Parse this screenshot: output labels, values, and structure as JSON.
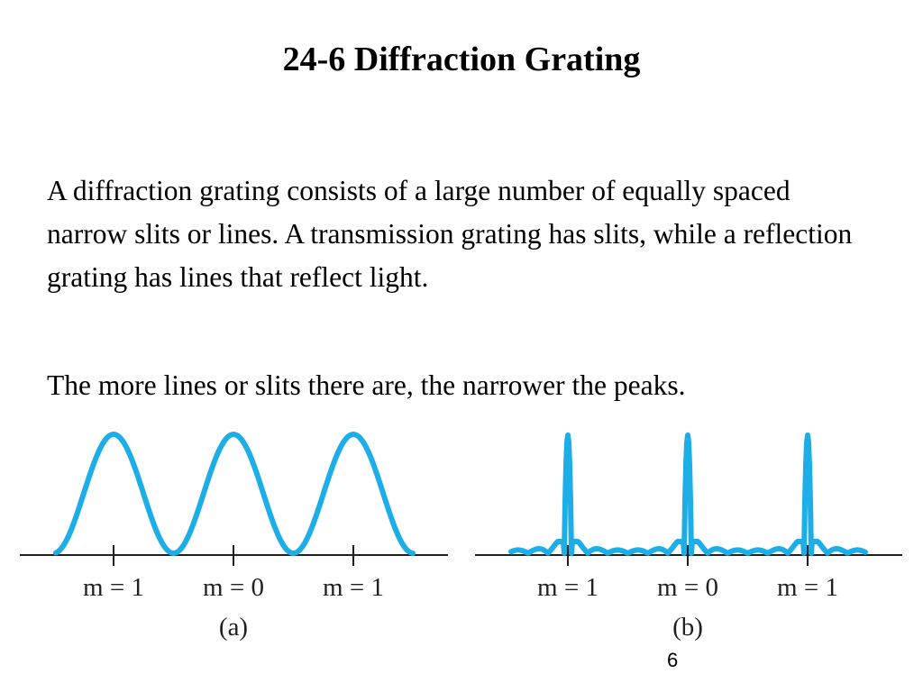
{
  "slide": {
    "title": "24-6 Diffraction Grating",
    "paragraph1": "A diffraction grating consists of a large number of equally spaced narrow slits or lines. A transmission grating has slits, while a reflection grating has lines that reflect light.",
    "paragraph2": "The more lines or slits there are, the narrower the peaks.",
    "page_number": "6"
  },
  "figures": {
    "curve_color": "#1eaee7",
    "axis_color": "#231f20",
    "panel_a": {
      "caption": "(a)",
      "labels": [
        "m = 1",
        "m = 0",
        "m = 1"
      ],
      "pattern": "broad peaks"
    },
    "panel_b": {
      "caption": "(b)",
      "labels": [
        "m = 1",
        "m = 0",
        "m = 1"
      ],
      "pattern": "narrow peaks with small secondary maxima"
    }
  }
}
